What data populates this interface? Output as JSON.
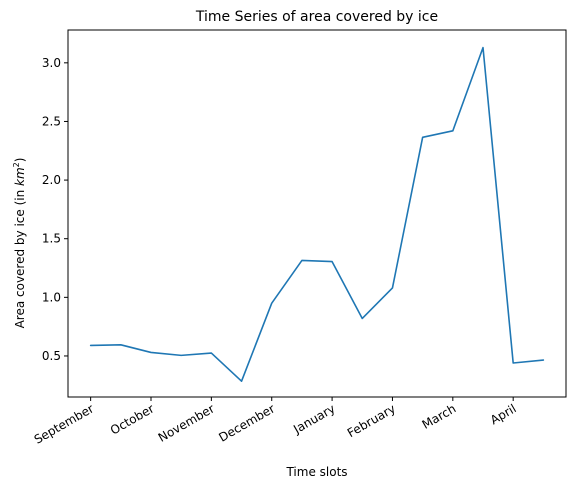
{
  "chart_data": {
    "type": "line",
    "title": "Time Series of area covered by ice",
    "xlabel": "Time slots",
    "ylabel_prefix": "Area covered by ice (in ",
    "ylabel_unit_base": "km",
    "ylabel_unit_exp": "2",
    "ylabel_suffix": ")",
    "x_tick_labels": [
      "September",
      "October",
      "November",
      "December",
      "January",
      "February",
      "March",
      "April"
    ],
    "x_tick_positions": [
      0,
      2,
      4,
      6,
      8,
      10,
      12,
      14
    ],
    "x_tick_label_rotation_deg": 30,
    "xlim": [
      -0.75,
      15.75
    ],
    "ylim": [
      0.15,
      3.28
    ],
    "y_ticks": [
      0.5,
      1.0,
      1.5,
      2.0,
      2.5,
      3.0
    ],
    "y_tick_labels": [
      "0.5",
      "1.0",
      "1.5",
      "2.0",
      "2.5",
      "3.0"
    ],
    "grid": false,
    "series": [
      {
        "color": "#1f77b4",
        "x": [
          0,
          1,
          2,
          3,
          4,
          5,
          6,
          7,
          8,
          9,
          10,
          11,
          12,
          13,
          14,
          15
        ],
        "values": [
          0.59,
          0.595,
          0.53,
          0.505,
          0.525,
          0.285,
          0.95,
          1.315,
          1.305,
          0.82,
          1.08,
          2.365,
          2.42,
          3.13,
          0.44,
          0.465
        ]
      }
    ]
  }
}
